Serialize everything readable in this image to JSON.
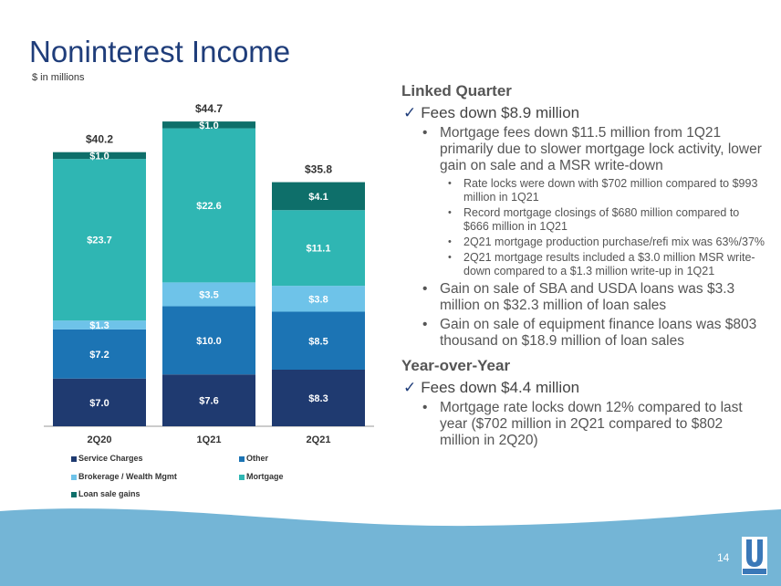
{
  "page": {
    "title": "Noninterest Income",
    "subtitle": "$ in millions",
    "page_number": "14",
    "logo_text": "UNITED"
  },
  "colors": {
    "title": "#1f3d7a",
    "wave": "#74b5d6",
    "service_charges": "#1f3a70",
    "other": "#1c74b4",
    "brokerage": "#6ec3e9",
    "mortgage": "#2fb6b3",
    "loan_sale_gains": "#0e6f6a"
  },
  "chart_data": {
    "type": "bar",
    "stacked": true,
    "categories": [
      "2Q20",
      "1Q21",
      "2Q21"
    ],
    "totals": [
      "$40.2",
      "$44.7",
      "$35.8"
    ],
    "total_values": [
      40.2,
      44.7,
      35.8
    ],
    "ylim": [
      0,
      50
    ],
    "series": [
      {
        "name": "Service Charges",
        "values": [
          7.0,
          7.6,
          8.3
        ],
        "labels": [
          "$7.0",
          "$7.6",
          "$8.3"
        ],
        "color": "#1f3a70"
      },
      {
        "name": "Other",
        "values": [
          7.2,
          10.0,
          8.5
        ],
        "labels": [
          "$7.2",
          "$10.0",
          "$8.5"
        ],
        "color": "#1c74b4"
      },
      {
        "name": "Brokerage / Wealth Mgmt",
        "values": [
          1.3,
          3.5,
          3.8
        ],
        "labels": [
          "$1.3",
          "$3.5",
          "$3.8"
        ],
        "color": "#6ec3e9"
      },
      {
        "name": "Mortgage",
        "values": [
          23.7,
          22.6,
          11.1
        ],
        "labels": [
          "$23.7",
          "$22.6",
          "$11.1"
        ],
        "color": "#2fb6b3"
      },
      {
        "name": "Loan sale gains",
        "values": [
          1.0,
          1.0,
          4.1
        ],
        "labels": [
          "$1.0",
          "$1.0",
          "$4.1"
        ],
        "color": "#0e6f6a"
      }
    ],
    "legend": [
      "Service Charges",
      "Other",
      "Brokerage / Wealth Mgmt",
      "Mortgage",
      "Loan sale gains"
    ],
    "legend_position": "bottom",
    "grid": false
  },
  "panel": {
    "linked_quarter": {
      "heading": "Linked Quarter",
      "check": "Fees down $8.9 million",
      "bullets": {
        "b1": {
          "text": "Mortgage fees down $11.5 million from 1Q21 primarily due to slower mortgage lock activity, lower gain on sale and a MSR write-down",
          "subs": [
            "Rate locks were down with $702 million compared to $993 million in 1Q21",
            "Record mortgage closings of $680 million compared to $666 million in 1Q21",
            "2Q21 mortgage production purchase/refi mix was 63%/37%",
            "2Q21 mortgage results included a $3.0 million MSR write-down compared to a $1.3 million write-up in 1Q21"
          ]
        },
        "b2": "Gain on sale of SBA and USDA loans was $3.3 million on $32.3 million of loan sales",
        "b3": "Gain on sale of equipment finance loans was $803 thousand on $18.9 million of loan sales"
      }
    },
    "year_over_year": {
      "heading": "Year-over-Year",
      "check": "Fees down $4.4 million",
      "bullets": [
        "Mortgage rate locks down 12% compared to last year ($702 million in 2Q21 compared to $802 million in 2Q20)"
      ]
    }
  }
}
